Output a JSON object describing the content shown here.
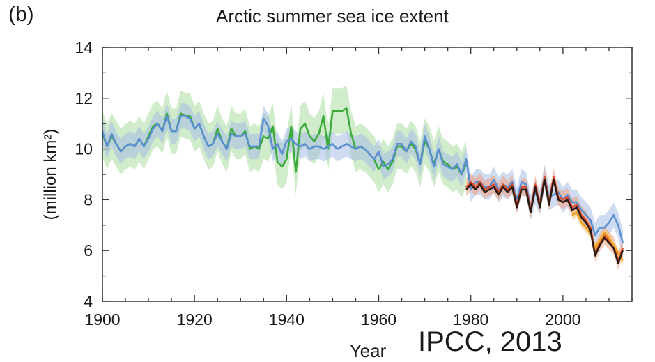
{
  "figure": {
    "panel_label": "(b)",
    "source": "IPCC, 2013"
  },
  "colors": {
    "green": "#3aaa3a",
    "green_band": "#a9dca0",
    "blue": "#5b8fd0",
    "blue_band": "#a6bde6",
    "red": "#d94b2a",
    "red_band": "#f0a080",
    "orange": "#f0a020",
    "orange_band": "#f7c87a",
    "black": "#2a1a12"
  },
  "chart_data": {
    "type": "line",
    "title": "Arctic summer sea ice extent",
    "xlabel": "Year",
    "ylabel": "(million km²)",
    "xlim": [
      1900,
      2015
    ],
    "ylim": [
      4,
      14
    ],
    "xticks": [
      1900,
      1920,
      1940,
      1960,
      1980,
      2000
    ],
    "yticks": [
      4,
      6,
      8,
      10,
      12,
      14
    ],
    "grid": false,
    "legend": "none",
    "series": [
      {
        "color_key": "green",
        "band_key": "green_band",
        "band_width": 0.9,
        "x": [
          1900,
          1901,
          1902,
          1903,
          1904,
          1905,
          1906,
          1907,
          1908,
          1909,
          1910,
          1911,
          1912,
          1913,
          1914,
          1915,
          1916,
          1917,
          1918,
          1919,
          1920,
          1921,
          1922,
          1923,
          1924,
          1925,
          1926,
          1927,
          1928,
          1929,
          1930,
          1931,
          1932,
          1933,
          1934,
          1935,
          1936,
          1937,
          1938,
          1939,
          1940,
          1941,
          1942,
          1943,
          1944,
          1945,
          1946,
          1947,
          1948,
          1949,
          1950,
          1951,
          1952,
          1953,
          1954,
          1955,
          1956,
          1957,
          1958,
          1959,
          1960,
          1961,
          1962,
          1963,
          1964,
          1965,
          1966,
          1967,
          1968,
          1969,
          1970,
          1971,
          1972,
          1973,
          1974,
          1975,
          1976,
          1977,
          1978,
          1979
        ],
        "y": [
          10.6,
          10.1,
          10.5,
          10.2,
          9.9,
          10.1,
          10.2,
          10.1,
          10.4,
          10.1,
          10.5,
          10.9,
          11.0,
          10.7,
          11.4,
          10.7,
          10.7,
          11.4,
          11.3,
          11.3,
          10.8,
          11.0,
          10.5,
          10.1,
          10.2,
          10.8,
          10.3,
          10.0,
          10.8,
          10.5,
          10.5,
          10.7,
          10.0,
          10.1,
          10.0,
          10.5,
          10.4,
          10.9,
          9.5,
          9.3,
          9.6,
          10.9,
          9.1,
          10.8,
          11.0,
          10.5,
          10.3,
          10.6,
          11.3,
          10.0,
          11.5,
          11.5,
          11.5,
          11.6,
          10.6,
          10.0,
          10.1,
          10.0,
          9.8,
          9.6,
          9.2,
          9.5,
          9.2,
          9.5,
          10.1,
          10.1,
          9.9,
          10.2,
          10.0,
          9.4,
          10.3,
          10.0,
          9.4,
          10.0,
          9.5,
          9.4,
          9.2,
          9.3,
          9.0,
          9.4
        ]
      },
      {
        "color_key": "blue",
        "band_key": "blue_band",
        "band_width": 0.5,
        "x": [
          1900,
          1901,
          1902,
          1903,
          1904,
          1905,
          1906,
          1907,
          1908,
          1909,
          1910,
          1911,
          1912,
          1913,
          1914,
          1915,
          1916,
          1917,
          1918,
          1919,
          1920,
          1921,
          1922,
          1923,
          1924,
          1925,
          1926,
          1927,
          1928,
          1929,
          1930,
          1931,
          1932,
          1933,
          1934,
          1935,
          1936,
          1937,
          1938,
          1939,
          1940,
          1941,
          1942,
          1943,
          1944,
          1945,
          1946,
          1947,
          1948,
          1949,
          1950,
          1951,
          1952,
          1953,
          1954,
          1955,
          1956,
          1957,
          1958,
          1959,
          1960,
          1961,
          1962,
          1963,
          1964,
          1965,
          1966,
          1967,
          1968,
          1969,
          1970,
          1971,
          1972,
          1973,
          1974,
          1975,
          1976,
          1977,
          1978,
          1979,
          1980,
          1981,
          1982,
          1983,
          1984,
          1985,
          1986,
          1987,
          1988,
          1989,
          1990,
          1991,
          1992,
          1993,
          1994,
          1995,
          1996,
          1997,
          1998,
          1999,
          2000,
          2001,
          2002,
          2003,
          2004,
          2005,
          2006,
          2007,
          2008,
          2009,
          2010,
          2011,
          2012,
          2013
        ],
        "y": [
          10.7,
          10.1,
          10.6,
          10.2,
          9.9,
          10.1,
          10.2,
          10.1,
          10.4,
          10.1,
          10.4,
          10.8,
          11.0,
          10.7,
          11.3,
          10.7,
          10.7,
          11.3,
          11.3,
          11.2,
          10.8,
          11.0,
          10.5,
          10.1,
          10.2,
          10.6,
          10.3,
          10.0,
          10.6,
          10.5,
          10.5,
          10.6,
          10.1,
          10.1,
          10.1,
          11.2,
          10.9,
          10.0,
          10.2,
          9.8,
          10.3,
          10.4,
          10.2,
          10.1,
          10.2,
          10.0,
          10.1,
          10.1,
          10.0,
          10.1,
          10.2,
          10.0,
          10.1,
          10.2,
          10.1,
          10.0,
          10.1,
          10.0,
          9.8,
          9.6,
          9.9,
          9.3,
          9.4,
          9.6,
          10.2,
          10.2,
          9.9,
          10.3,
          10.1,
          9.4,
          10.5,
          10.0,
          9.3,
          10.0,
          9.4,
          9.3,
          9.2,
          9.4,
          9.0,
          9.6,
          8.4,
          8.7,
          8.7,
          8.5,
          8.5,
          8.8,
          8.4,
          8.6,
          8.5,
          8.7,
          8.0,
          8.7,
          8.6,
          7.7,
          8.3,
          7.9,
          8.9,
          8.1,
          8.2,
          8.3,
          8.0,
          8.2,
          7.9,
          7.9,
          7.6,
          7.4,
          7.2,
          6.6,
          6.9,
          6.9,
          7.1,
          7.4,
          7.0,
          6.3
        ]
      },
      {
        "color_key": "red",
        "band_key": "red_band",
        "band_width": 0.35,
        "x": [
          1979,
          1980,
          1981,
          1982,
          1983,
          1984,
          1985,
          1986,
          1987,
          1988,
          1989,
          1990,
          1991,
          1992,
          1993,
          1994,
          1995,
          1996,
          1997,
          1998,
          1999,
          2000,
          2001,
          2002,
          2003,
          2004,
          2005,
          2006,
          2007,
          2008,
          2009,
          2010,
          2011,
          2012,
          2013
        ],
        "y": [
          8.5,
          8.7,
          8.5,
          8.7,
          8.4,
          8.5,
          8.6,
          8.3,
          8.6,
          8.4,
          8.6,
          7.8,
          8.5,
          8.5,
          7.6,
          8.6,
          7.8,
          8.9,
          7.9,
          8.9,
          8.1,
          8.0,
          8.1,
          7.7,
          7.8,
          7.4,
          7.2,
          6.9,
          5.9,
          6.3,
          6.6,
          6.4,
          6.2,
          5.6,
          6.1
        ]
      },
      {
        "color_key": "orange",
        "band_key": "orange_band",
        "band_width": 0.2,
        "x": [
          2002,
          2003,
          2004,
          2005,
          2006,
          2007,
          2008,
          2009,
          2010,
          2011,
          2012,
          2013
        ],
        "y": [
          7.4,
          7.5,
          7.1,
          6.9,
          6.7,
          6.1,
          6.4,
          6.7,
          6.5,
          6.2,
          5.9,
          5.6
        ]
      },
      {
        "color_key": "black",
        "x": [
          1979,
          1980,
          1981,
          1982,
          1983,
          1984,
          1985,
          1986,
          1987,
          1988,
          1989,
          1990,
          1991,
          1992,
          1993,
          1994,
          1995,
          1996,
          1997,
          1998,
          1999,
          2000,
          2001,
          2002,
          2003,
          2004,
          2005,
          2006,
          2007,
          2008,
          2009,
          2010,
          2011,
          2012,
          2013
        ],
        "y": [
          8.4,
          8.6,
          8.4,
          8.6,
          8.3,
          8.4,
          8.5,
          8.2,
          8.5,
          8.3,
          8.5,
          7.7,
          8.4,
          8.4,
          7.5,
          8.5,
          7.7,
          8.8,
          7.8,
          8.8,
          8.0,
          7.9,
          8.0,
          7.6,
          7.7,
          7.3,
          7.1,
          6.8,
          5.8,
          6.2,
          6.5,
          6.3,
          6.1,
          5.5,
          6.0
        ]
      }
    ]
  }
}
